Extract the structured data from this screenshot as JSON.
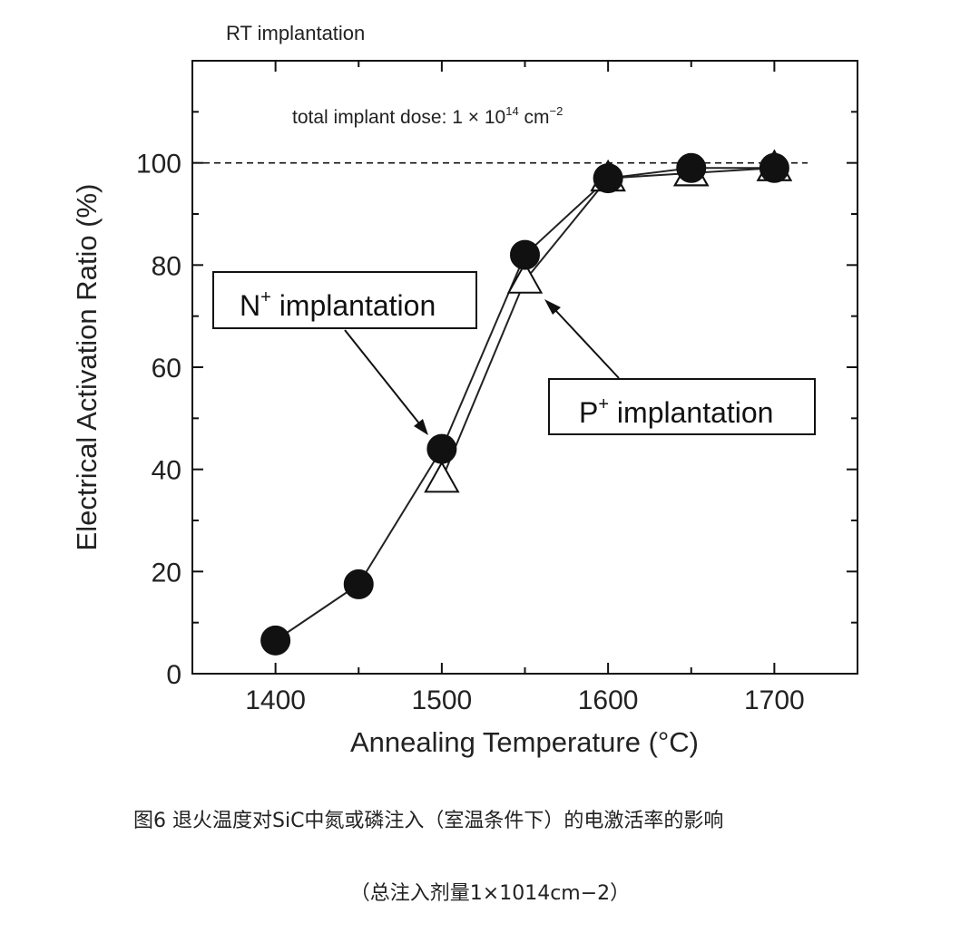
{
  "chart_data": {
    "type": "line",
    "header_label": "RT implantation",
    "dose_annotation": {
      "text": "total implant dose: 1 × 10",
      "exponent": "14",
      "unit": " cm",
      "unit_exponent": "−2"
    },
    "xlabel": "Annealing Temperature (°C)",
    "ylabel": "Electrical Activation Ratio (%)",
    "xlim": [
      1350,
      1750
    ],
    "ylim": [
      0,
      120
    ],
    "x_ticks": [
      1400,
      1500,
      1600,
      1700
    ],
    "y_ticks": [
      0,
      20,
      40,
      60,
      80,
      100
    ],
    "reference_line": {
      "y": 100,
      "style": "dashed"
    },
    "series": [
      {
        "name": "N+ implantation",
        "label_main": "N",
        "label_sup": "+",
        "label_rest": " implantation",
        "marker": "filled-circle",
        "x": [
          1400,
          1450,
          1500,
          1550,
          1600,
          1650,
          1700
        ],
        "y": [
          6.5,
          17.5,
          44,
          82,
          97,
          99,
          99
        ]
      },
      {
        "name": "P+ implantation",
        "label_main": "P",
        "label_sup": "+",
        "label_rest": " implantation",
        "marker": "open-triangle",
        "x": [
          1500,
          1550,
          1600,
          1650,
          1700
        ],
        "y": [
          38,
          77,
          97,
          98,
          99
        ]
      }
    ]
  },
  "caption": {
    "line1": "图6  退火温度对SiC中氮或磷注入（室温条件下）的电激活率的影响",
    "line2": "（总注入剂量1×1014cm−2）"
  }
}
